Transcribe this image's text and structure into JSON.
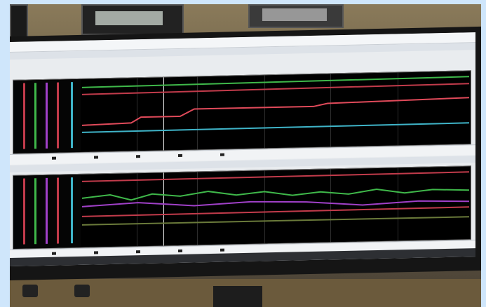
{
  "scene": {
    "wall_color": "#6e6248",
    "sky_border_color": "#cfe6fb",
    "monitor_color": "#151515",
    "screen_background": "#e9ecef"
  },
  "top_panel": {
    "plot_background": "#000000",
    "legend_bars": [
      "#c23b4b",
      "#3fb84a",
      "#a040c8",
      "#c23b4b",
      "#3fb4c8"
    ],
    "traces": [
      "#3fb84a",
      "#c23b4b",
      "#e04a5a",
      "#3fb4c8"
    ]
  },
  "bottom_panel": {
    "plot_background": "#000000",
    "legend_bars": [
      "#c23b4b",
      "#3fb84a",
      "#a040c8",
      "#c23b4b",
      "#3fb4c8"
    ],
    "traces": [
      "#c23b4b",
      "#3fb84a",
      "#a040c8",
      "#c23b4b",
      "#6a7a3a"
    ]
  }
}
